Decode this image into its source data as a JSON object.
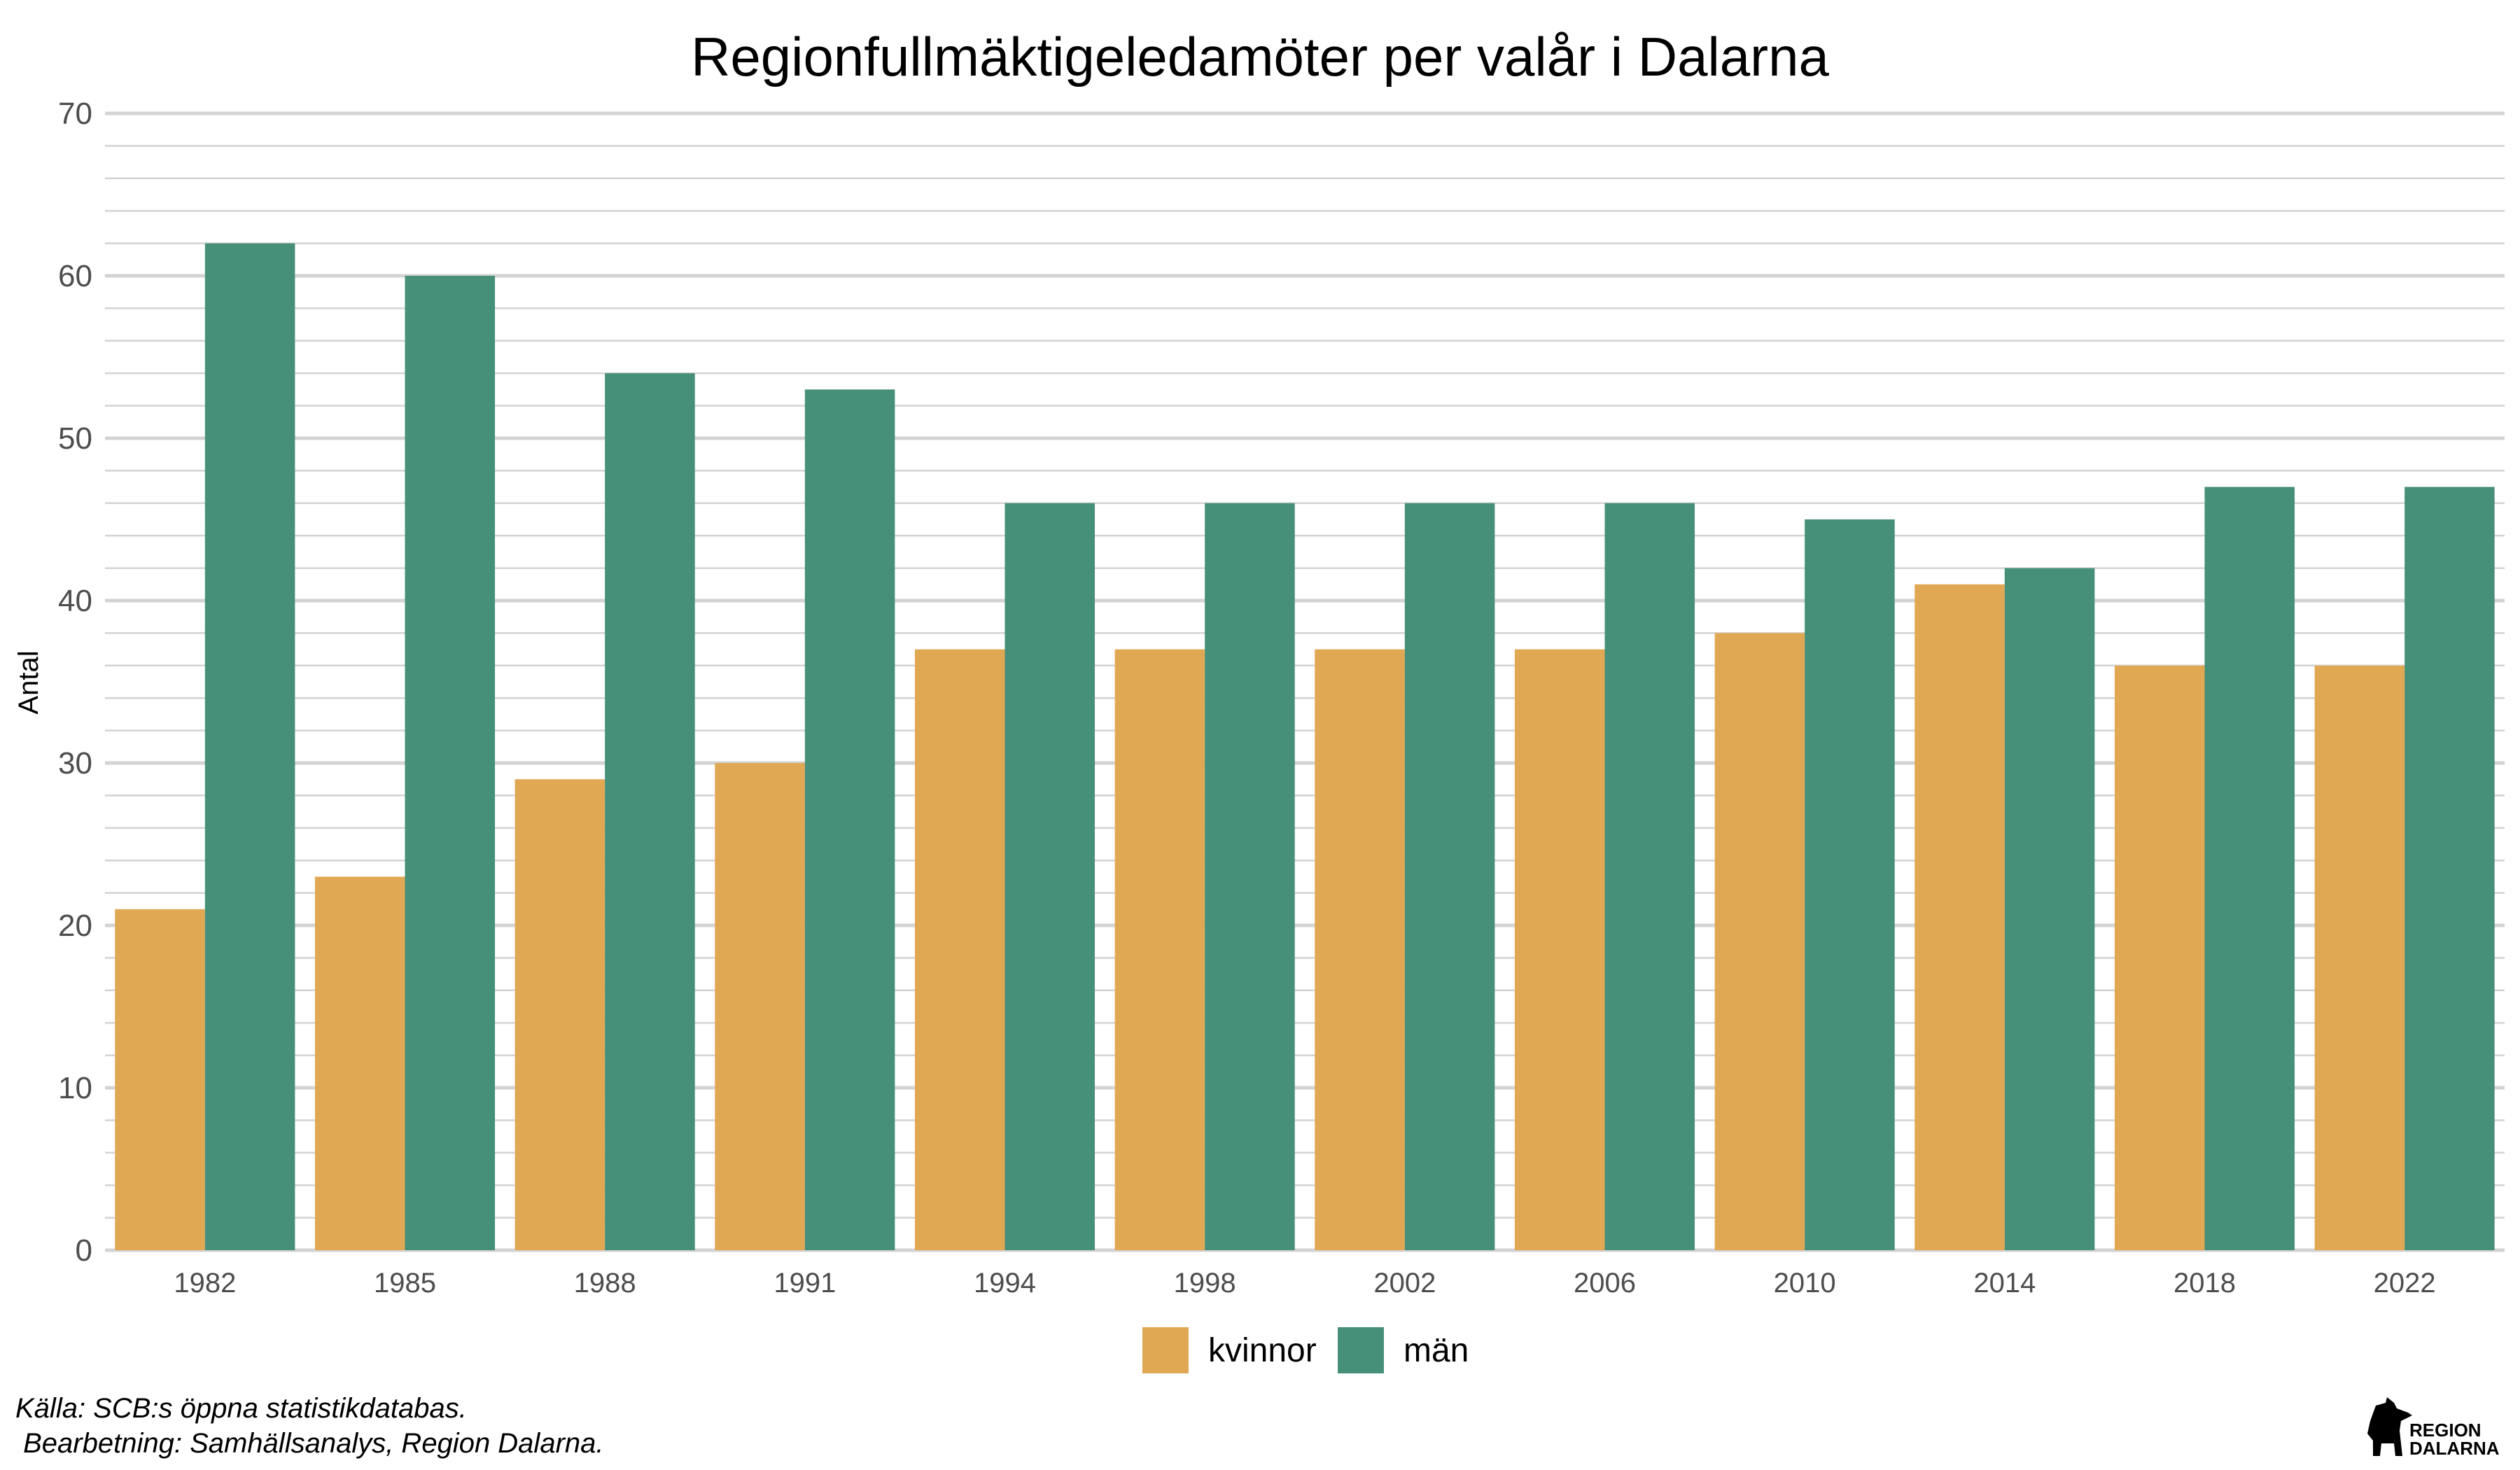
{
  "chart_data": {
    "type": "bar",
    "title": "Regionfullmäktigeledamöter per valår i Dalarna",
    "xlabel": "",
    "ylabel": "Antal",
    "ylim": [
      0,
      70
    ],
    "yticks": [
      0,
      10,
      20,
      30,
      40,
      50,
      60,
      70
    ],
    "grid": true,
    "legend_position": "bottom",
    "categories": [
      "1982",
      "1985",
      "1988",
      "1991",
      "1994",
      "1998",
      "2002",
      "2006",
      "2010",
      "2014",
      "2018",
      "2022"
    ],
    "series": [
      {
        "name": "kvinnor",
        "color": "#E1A854",
        "values": [
          21,
          23,
          29,
          30,
          37,
          37,
          37,
          37,
          38,
          41,
          36,
          36
        ]
      },
      {
        "name": "män",
        "color": "#468F78",
        "values": [
          62,
          60,
          54,
          53,
          46,
          46,
          46,
          46,
          45,
          42,
          47,
          47
        ]
      }
    ]
  },
  "caption": {
    "line1": "Källa: SCB:s öppna statistikdatabas.",
    "line2": " Bearbetning: Samhällsanalys, Region Dalarna."
  },
  "logo": {
    "line1": "REGION",
    "line2": "DALARNA"
  }
}
